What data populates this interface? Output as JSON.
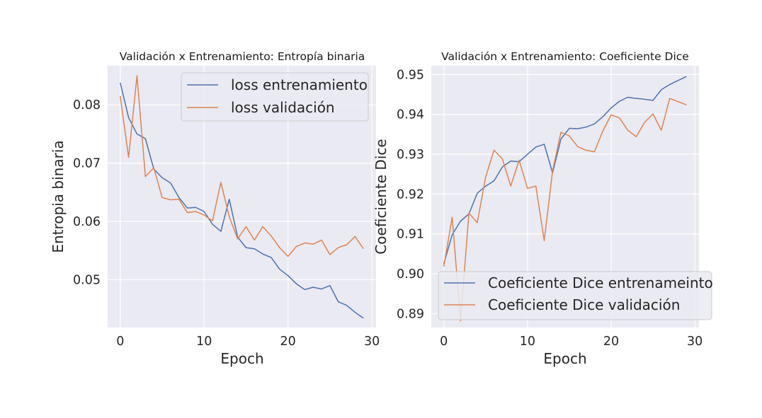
{
  "chart_data": [
    {
      "type": "line",
      "title": "Validación x Entrenamiento: Entropía binaria",
      "xlabel": "Epoch",
      "ylabel": "Entropia binaria",
      "xlim": [
        -1.5,
        30.5
      ],
      "ylim": [
        0.0418,
        0.0867
      ],
      "xticks": [
        0,
        10,
        20,
        30
      ],
      "xtick_labels": [
        "0",
        "10",
        "20",
        "30"
      ],
      "yticks": [
        0.05,
        0.06,
        0.07,
        0.08
      ],
      "ytick_labels": [
        "0.05",
        "0.06",
        "0.07",
        "0.08"
      ],
      "grid": true,
      "legend_position": "upper right",
      "x": [
        0,
        1,
        2,
        3,
        4,
        5,
        6,
        7,
        8,
        9,
        10,
        11,
        12,
        13,
        14,
        15,
        16,
        17,
        18,
        19,
        20,
        21,
        22,
        23,
        24,
        25,
        26,
        27,
        28,
        29
      ],
      "series": [
        {
          "name": "loss entrenamiento",
          "color": "#4c72b0",
          "values": [
            0.0838,
            0.0778,
            0.075,
            0.0742,
            0.069,
            0.0675,
            0.0666,
            0.0641,
            0.0623,
            0.0624,
            0.0617,
            0.0595,
            0.0583,
            0.0638,
            0.0573,
            0.0555,
            0.0553,
            0.0544,
            0.0538,
            0.0518,
            0.0507,
            0.0493,
            0.0483,
            0.0487,
            0.0484,
            0.049,
            0.0462,
            0.0456,
            0.0444,
            0.0434
          ]
        },
        {
          "name": "loss validación",
          "color": "#dd8452",
          "values": [
            0.0815,
            0.071,
            0.085,
            0.0677,
            0.0692,
            0.0641,
            0.0637,
            0.0638,
            0.0615,
            0.0617,
            0.0611,
            0.0601,
            0.0667,
            0.0608,
            0.057,
            0.0591,
            0.0568,
            0.0591,
            0.0575,
            0.0555,
            0.054,
            0.0557,
            0.0563,
            0.0561,
            0.0568,
            0.0543,
            0.0555,
            0.056,
            0.0574,
            0.0553
          ]
        }
      ]
    },
    {
      "type": "line",
      "title": "Validación x Entrenamiento: Coeficiente Dice",
      "xlabel": "Epoch",
      "ylabel": "Coeficiente Dice",
      "xlim": [
        -1.5,
        30.5
      ],
      "ylim": [
        0.8865,
        0.9522
      ],
      "xticks": [
        0,
        10,
        20,
        30
      ],
      "xtick_labels": [
        "0",
        "10",
        "20",
        "30"
      ],
      "yticks": [
        0.89,
        0.9,
        0.91,
        0.92,
        0.93,
        0.94,
        0.95
      ],
      "ytick_labels": [
        "0.89",
        "0.90",
        "0.91",
        "0.92",
        "0.93",
        "0.94",
        "0.95"
      ],
      "grid": true,
      "legend_position": "lower right",
      "x": [
        0,
        1,
        2,
        3,
        4,
        5,
        6,
        7,
        8,
        9,
        10,
        11,
        12,
        13,
        14,
        15,
        16,
        17,
        18,
        19,
        20,
        21,
        22,
        23,
        24,
        25,
        26,
        27,
        28,
        29
      ],
      "series": [
        {
          "name": "Coeficiente Dice entrenameinto",
          "color": "#4c72b0",
          "values": [
            0.9025,
            0.9098,
            0.9132,
            0.915,
            0.9202,
            0.922,
            0.9233,
            0.9268,
            0.9283,
            0.9281,
            0.93,
            0.9318,
            0.9325,
            0.9253,
            0.9338,
            0.9365,
            0.9364,
            0.9368,
            0.9376,
            0.9394,
            0.9416,
            0.9433,
            0.9443,
            0.944,
            0.9438,
            0.9435,
            0.9462,
            0.9475,
            0.9485,
            0.9495
          ]
        },
        {
          "name": "Coeficiente Dice validación",
          "color": "#dd8452",
          "values": [
            0.9018,
            0.9142,
            0.8882,
            0.9152,
            0.9128,
            0.9243,
            0.931,
            0.9288,
            0.922,
            0.9285,
            0.9214,
            0.922,
            0.9083,
            0.9258,
            0.9355,
            0.9346,
            0.9319,
            0.931,
            0.9306,
            0.9358,
            0.9399,
            0.9391,
            0.936,
            0.9344,
            0.938,
            0.9401,
            0.936,
            0.944,
            0.9432,
            0.9424
          ]
        }
      ]
    }
  ]
}
